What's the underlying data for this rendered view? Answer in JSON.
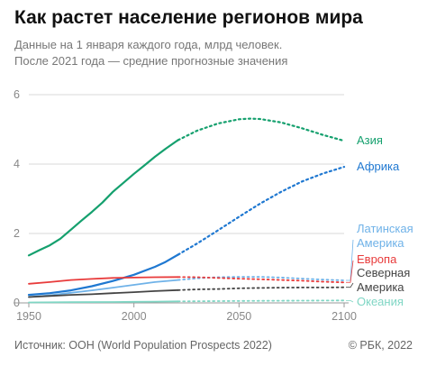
{
  "header": {
    "title": "Как растет население регионов мира",
    "subtitle_line1": "Данные на 1 января каждого года, млрд человек.",
    "subtitle_line2": "После 2021 года — средние прогнозные значения"
  },
  "footer": {
    "source": "Источник: ООН (World Population Prospects 2022)",
    "copyright": "© РБК, 2022"
  },
  "colors": {
    "asia": "#15a06e",
    "africa": "#1f78d1",
    "latam": "#6fb2e8",
    "europe": "#e83b3b",
    "namerica": "#444444",
    "oceania": "#7fd6c4",
    "grid": "#d9d9d9",
    "axis": "#9a9a9a"
  },
  "chart_data": {
    "type": "line",
    "xlabel": "",
    "ylabel": "",
    "xlim": [
      1950,
      2100
    ],
    "ylim": [
      0,
      6
    ],
    "x_ticks": [
      1950,
      2000,
      2050,
      2100
    ],
    "y_ticks": [
      0,
      2,
      4,
      6
    ],
    "grid": "horizontal",
    "projection_start": 2021,
    "series": [
      {
        "key": "asia",
        "name": "Азия",
        "label_lines": [
          "Азия"
        ],
        "points": [
          [
            1950,
            1.37
          ],
          [
            1955,
            1.52
          ],
          [
            1960,
            1.66
          ],
          [
            1965,
            1.85
          ],
          [
            1970,
            2.11
          ],
          [
            1975,
            2.37
          ],
          [
            1980,
            2.62
          ],
          [
            1985,
            2.89
          ],
          [
            1990,
            3.2
          ],
          [
            1995,
            3.46
          ],
          [
            2000,
            3.72
          ],
          [
            2005,
            3.96
          ],
          [
            2010,
            4.21
          ],
          [
            2015,
            4.44
          ],
          [
            2020,
            4.65
          ],
          [
            2021,
            4.69
          ],
          [
            2030,
            4.96
          ],
          [
            2040,
            5.17
          ],
          [
            2050,
            5.29
          ],
          [
            2055,
            5.31
          ],
          [
            2060,
            5.3
          ],
          [
            2070,
            5.2
          ],
          [
            2080,
            5.03
          ],
          [
            2090,
            4.84
          ],
          [
            2100,
            4.67
          ]
        ]
      },
      {
        "key": "africa",
        "name": "Африка",
        "label_lines": [
          "Африка"
        ],
        "points": [
          [
            1950,
            0.23
          ],
          [
            1960,
            0.28
          ],
          [
            1970,
            0.36
          ],
          [
            1980,
            0.48
          ],
          [
            1990,
            0.63
          ],
          [
            2000,
            0.81
          ],
          [
            2010,
            1.04
          ],
          [
            2015,
            1.18
          ],
          [
            2021,
            1.39
          ],
          [
            2030,
            1.71
          ],
          [
            2040,
            2.09
          ],
          [
            2050,
            2.48
          ],
          [
            2060,
            2.86
          ],
          [
            2070,
            3.2
          ],
          [
            2080,
            3.5
          ],
          [
            2090,
            3.73
          ],
          [
            2100,
            3.92
          ]
        ]
      },
      {
        "key": "latam",
        "name": "Латинская Америка",
        "label_lines": [
          "Латинская",
          "Америка"
        ],
        "points": [
          [
            1950,
            0.17
          ],
          [
            1960,
            0.22
          ],
          [
            1970,
            0.29
          ],
          [
            1980,
            0.36
          ],
          [
            1990,
            0.44
          ],
          [
            2000,
            0.52
          ],
          [
            2010,
            0.6
          ],
          [
            2021,
            0.66
          ],
          [
            2030,
            0.71
          ],
          [
            2040,
            0.74
          ],
          [
            2050,
            0.75
          ],
          [
            2060,
            0.75
          ],
          [
            2070,
            0.73
          ],
          [
            2080,
            0.7
          ],
          [
            2090,
            0.67
          ],
          [
            2100,
            0.65
          ]
        ]
      },
      {
        "key": "europe",
        "name": "Европа",
        "label_lines": [
          "Европа"
        ],
        "points": [
          [
            1950,
            0.55
          ],
          [
            1960,
            0.6
          ],
          [
            1970,
            0.66
          ],
          [
            1980,
            0.69
          ],
          [
            1990,
            0.72
          ],
          [
            2000,
            0.73
          ],
          [
            2010,
            0.74
          ],
          [
            2021,
            0.745
          ],
          [
            2030,
            0.74
          ],
          [
            2040,
            0.72
          ],
          [
            2050,
            0.7
          ],
          [
            2060,
            0.68
          ],
          [
            2070,
            0.66
          ],
          [
            2080,
            0.64
          ],
          [
            2090,
            0.61
          ],
          [
            2100,
            0.59
          ]
        ]
      },
      {
        "key": "namerica",
        "name": "Северная Америка",
        "label_lines": [
          "Северная",
          "Америка"
        ],
        "points": [
          [
            1950,
            0.17
          ],
          [
            1960,
            0.2
          ],
          [
            1970,
            0.23
          ],
          [
            1980,
            0.25
          ],
          [
            1990,
            0.28
          ],
          [
            2000,
            0.31
          ],
          [
            2010,
            0.34
          ],
          [
            2021,
            0.37
          ],
          [
            2030,
            0.39
          ],
          [
            2040,
            0.4
          ],
          [
            2050,
            0.42
          ],
          [
            2060,
            0.43
          ],
          [
            2070,
            0.44
          ],
          [
            2080,
            0.445
          ],
          [
            2090,
            0.445
          ],
          [
            2100,
            0.45
          ]
        ]
      },
      {
        "key": "oceania",
        "name": "Океания",
        "label_lines": [
          "Океания"
        ],
        "points": [
          [
            1950,
            0.013
          ],
          [
            1970,
            0.02
          ],
          [
            1990,
            0.027
          ],
          [
            2000,
            0.031
          ],
          [
            2010,
            0.037
          ],
          [
            2021,
            0.044
          ],
          [
            2040,
            0.053
          ],
          [
            2060,
            0.06
          ],
          [
            2080,
            0.065
          ],
          [
            2100,
            0.069
          ]
        ]
      }
    ]
  }
}
